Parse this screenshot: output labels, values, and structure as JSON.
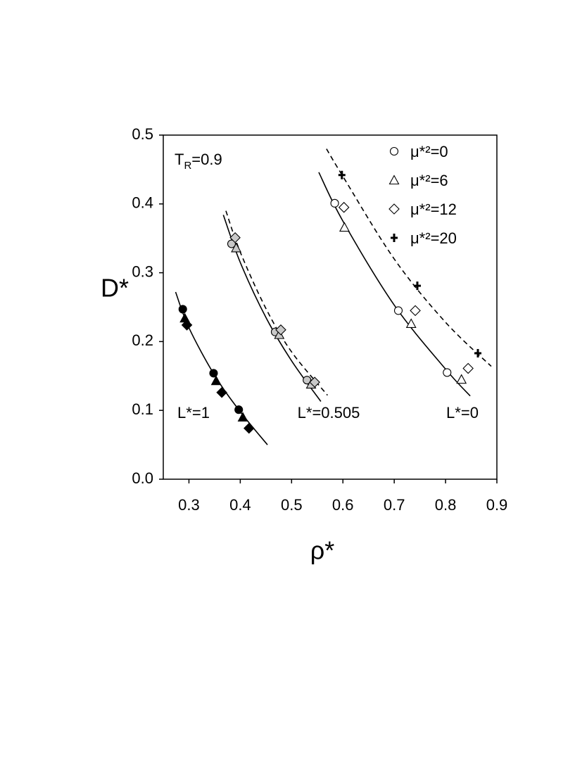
{
  "chart_data": {
    "type": "scatter",
    "xlabel": "ρ*",
    "ylabel": "D*",
    "annotation": {
      "main": "T",
      "sub": "R",
      "tail": "=0.9"
    },
    "xlim": [
      0.25,
      0.9
    ],
    "ylim": [
      0,
      0.5
    ],
    "xticks": [
      0.3,
      0.4,
      0.5,
      0.6,
      0.7,
      0.8,
      0.9
    ],
    "yticks": [
      {
        "value": 0,
        "label": "0.0"
      },
      0.1,
      0.2,
      0.3,
      0.4,
      0.5
    ],
    "series": [
      {
        "name": "μ*²=0",
        "marker": "circle"
      },
      {
        "name": "μ*²=6",
        "marker": "triangle"
      },
      {
        "name": "μ*²=12",
        "marker": "diamond"
      },
      {
        "name": "μ*²=20",
        "marker": "plus"
      }
    ],
    "groups": [
      {
        "label": "L*=1",
        "color": "#000000",
        "x": [
          [
            0.288,
            0.348,
            0.397
          ],
          [
            0.292,
            0.353,
            0.405
          ],
          [
            0.296,
            0.364,
            0.417
          ]
        ],
        "y": [
          [
            0.247,
            0.154,
            0.101
          ],
          [
            0.234,
            0.143,
            0.09
          ],
          [
            0.224,
            0.126,
            0.074
          ]
        ]
      },
      {
        "label": "L*=0.505",
        "color": "#c8c8c8",
        "x": [
          [
            0.383,
            0.468,
            0.53
          ],
          [
            0.392,
            0.476,
            0.538
          ],
          [
            0.39,
            0.479,
            0.545
          ]
        ],
        "y": [
          [
            0.342,
            0.214,
            0.144
          ],
          [
            0.336,
            0.21,
            0.138
          ],
          [
            0.351,
            0.217,
            0.141
          ]
        ]
      },
      {
        "label": "L*=0",
        "color": "#ffffff",
        "x": [
          [
            0.584,
            0.708,
            0.803
          ],
          [
            0.603,
            0.733,
            0.831
          ],
          [
            0.602,
            0.741,
            0.844
          ],
          [
            0.598,
            0.745,
            0.863
          ]
        ],
        "y": [
          [
            0.401,
            0.245,
            0.155
          ],
          [
            0.366,
            0.226,
            0.145
          ],
          [
            0.395,
            0.245,
            0.161
          ],
          [
            0.442,
            0.281,
            0.183
          ]
        ]
      }
    ],
    "curves": [
      {
        "dashed": false,
        "x": [
          0.274,
          0.3,
          0.35,
          0.4,
          0.453
        ],
        "y": [
          0.272,
          0.22,
          0.151,
          0.098,
          0.05
        ]
      },
      {
        "dashed": false,
        "x": [
          0.367,
          0.4,
          0.45,
          0.5,
          0.557
        ],
        "y": [
          0.384,
          0.315,
          0.235,
          0.172,
          0.113
        ]
      },
      {
        "dashed": true,
        "x": [
          0.372,
          0.4,
          0.45,
          0.5,
          0.57
        ],
        "y": [
          0.39,
          0.33,
          0.248,
          0.185,
          0.122
        ]
      },
      {
        "dashed": false,
        "x": [
          0.553,
          0.6,
          0.7,
          0.8,
          0.848
        ],
        "y": [
          0.446,
          0.375,
          0.253,
          0.16,
          0.121
        ]
      },
      {
        "dashed": true,
        "x": [
          0.568,
          0.6,
          0.7,
          0.8,
          0.889
        ],
        "y": [
          0.48,
          0.44,
          0.32,
          0.228,
          0.164
        ]
      }
    ]
  }
}
